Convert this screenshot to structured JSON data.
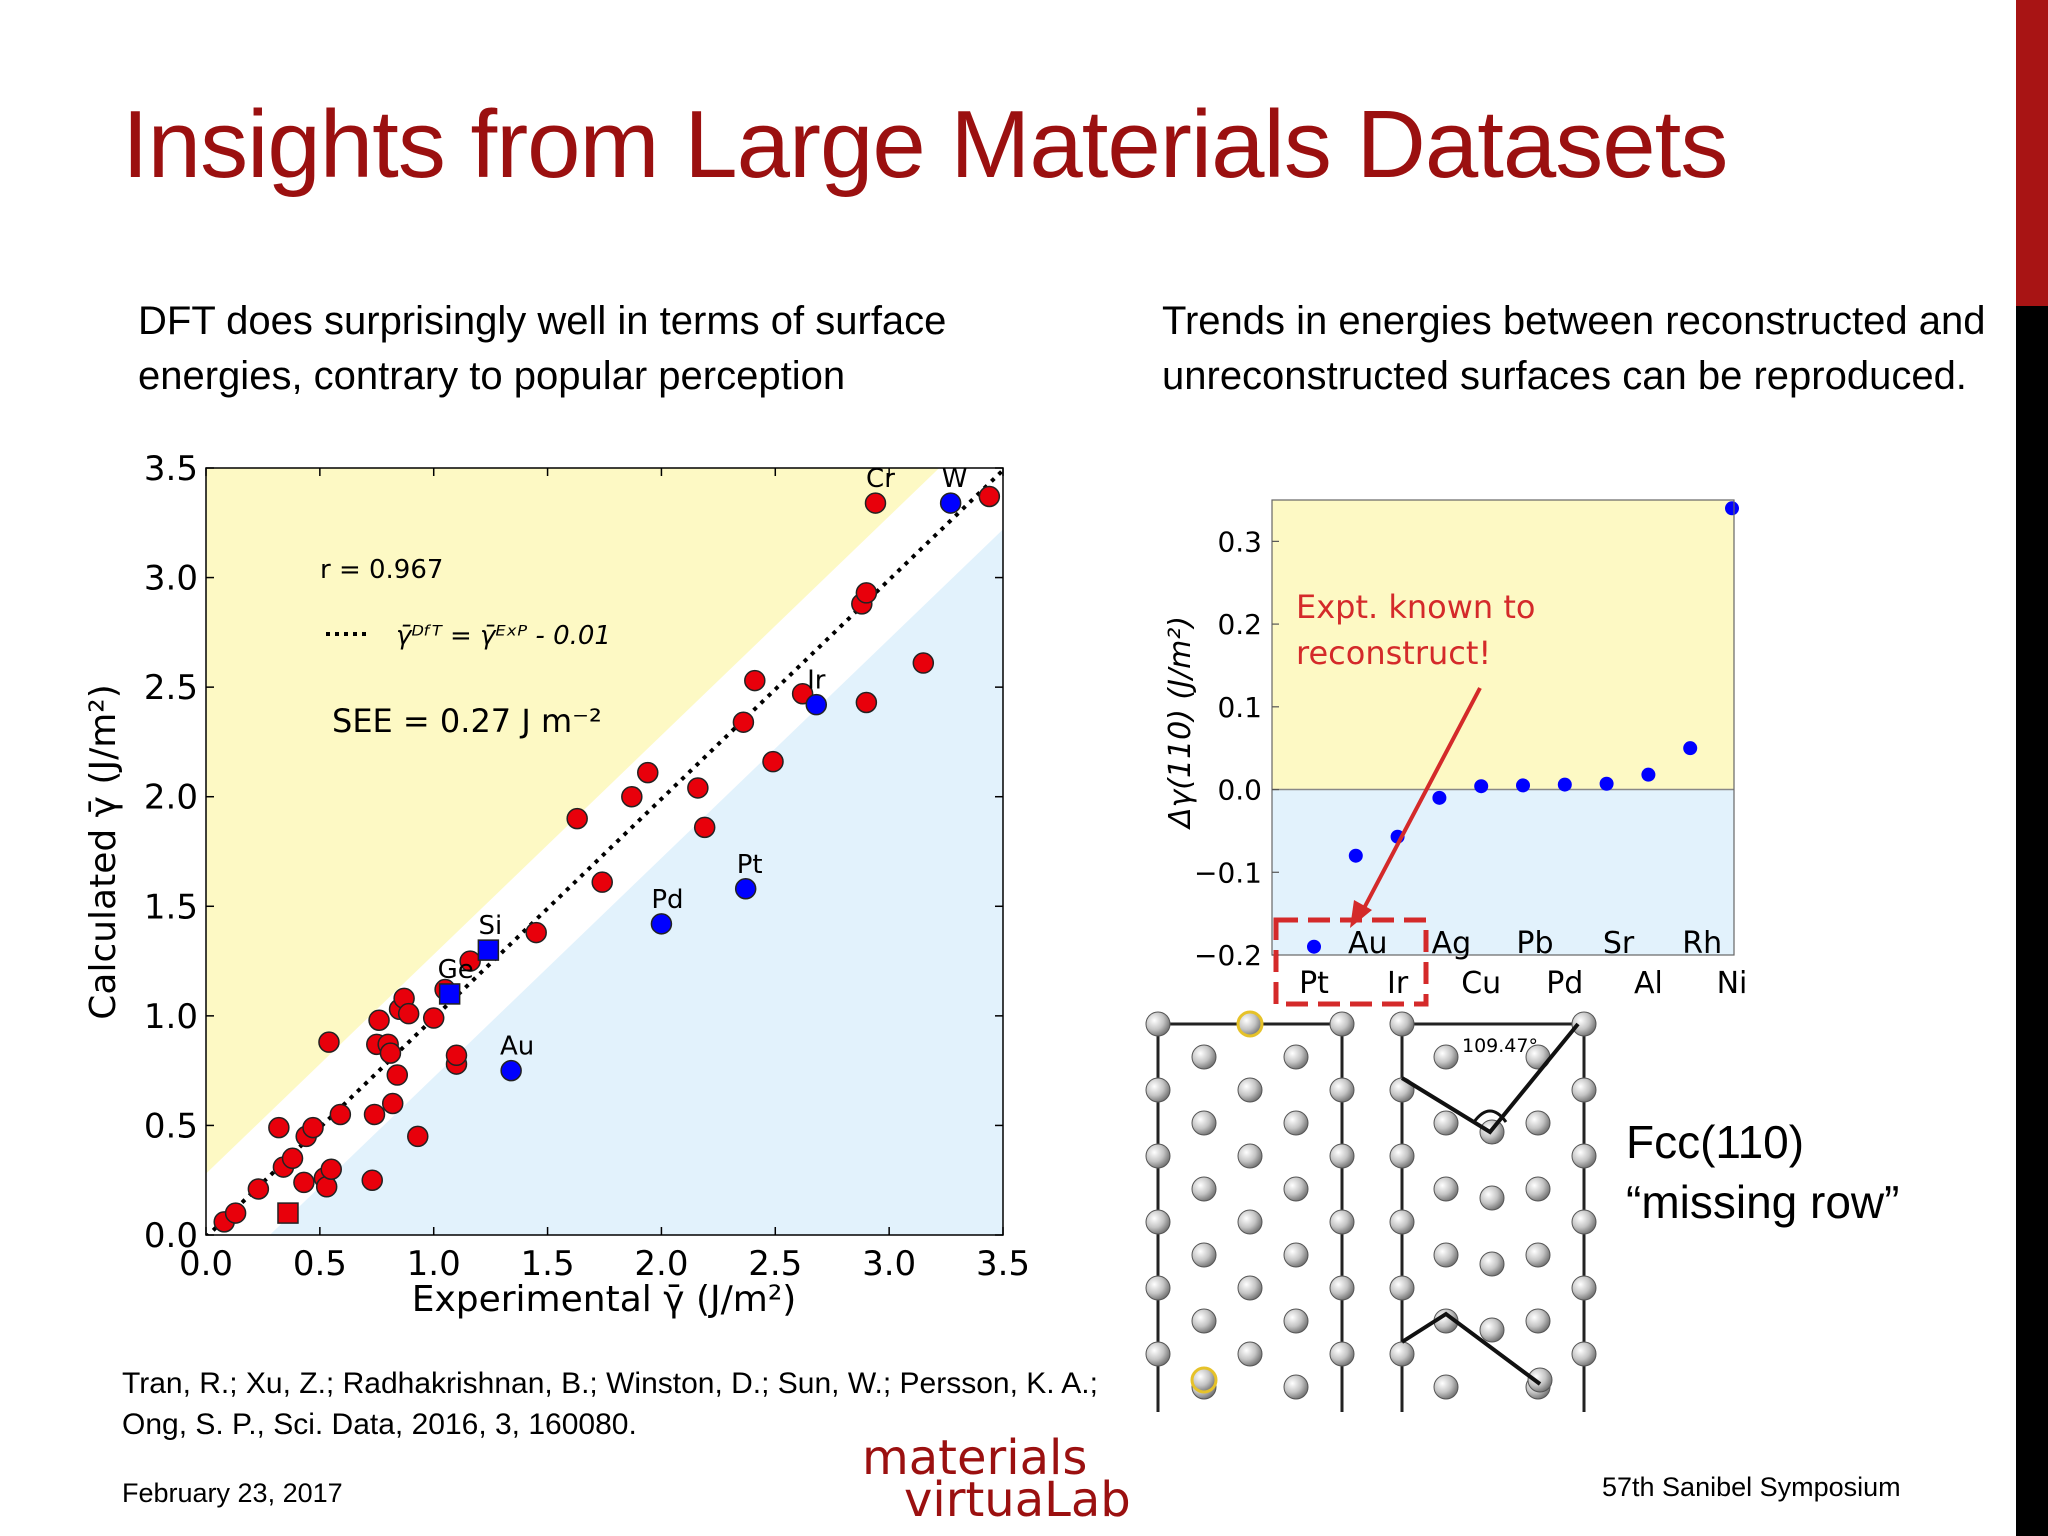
{
  "slide": {
    "title": "Insights from Large Materials Datasets",
    "left_text": "DFT does surprisingly well in terms of surface energies, contrary to popular perception",
    "right_text": "Trends in energies between reconstructed and unreconstructed surfaces can be reproduced.",
    "citation_line1": "Tran, R.; Xu, Z.; Radhakrishnan, B.; Winston, D.; Sun, W.; Persson, K. A.;",
    "citation_line2": "Ong, S. P., Sci. Data, 2016, 3, 160080.",
    "date": "February 23, 2017",
    "footer_right": "57th Sanibel Symposium",
    "logo_line1": "materials",
    "logo_line2": "virtuaLab",
    "fcc_label": "Fcc(110)",
    "fcc_sublabel": "“missing row”",
    "accent_color": "#9b1010"
  },
  "chart_data": [
    {
      "type": "scatter",
      "xlabel": "Experimental γ̄ (J/m²)",
      "ylabel": "Calculated γ̄ (J/m²)",
      "xlim": [
        0,
        3.5
      ],
      "ylim": [
        0,
        3.5
      ],
      "xticks": [
        "0.0",
        "0.5",
        "1.0",
        "1.5",
        "2.0",
        "2.5",
        "3.0",
        "3.5"
      ],
      "yticks": [
        "0.0",
        "0.5",
        "1.0",
        "1.5",
        "2.0",
        "2.5",
        "3.0",
        "3.5"
      ],
      "annotations": {
        "r_text": "r = 0.967",
        "fit_legend": "γ̄ᴰᶠᵀ = γ̄ᴱˣᴾ - 0.01",
        "see_text": "SEE = 0.27 J m⁻²"
      },
      "fit_line": {
        "slope": 1,
        "intercept": -0.01
      },
      "series": [
        {
          "color": "#e8000b",
          "marker": "circle",
          "points": [
            [
              0.08,
              0.06
            ],
            [
              0.13,
              0.1
            ],
            [
              0.23,
              0.21
            ],
            [
              0.32,
              0.49
            ],
            [
              0.34,
              0.31
            ],
            [
              0.38,
              0.35
            ],
            [
              0.43,
              0.24
            ],
            [
              0.44,
              0.45
            ],
            [
              0.47,
              0.49
            ],
            [
              0.52,
              0.26
            ],
            [
              0.53,
              0.22
            ],
            [
              0.54,
              0.88
            ],
            [
              0.55,
              0.3
            ],
            [
              0.59,
              0.55
            ],
            [
              0.73,
              0.25
            ],
            [
              0.74,
              0.55
            ],
            [
              0.75,
              0.87
            ],
            [
              0.76,
              0.98
            ],
            [
              0.8,
              0.87
            ],
            [
              0.81,
              0.83
            ],
            [
              0.82,
              0.6
            ],
            [
              0.84,
              0.73
            ],
            [
              0.85,
              1.03
            ],
            [
              0.87,
              1.08
            ],
            [
              0.89,
              1.01
            ],
            [
              0.93,
              0.45
            ],
            [
              1.0,
              0.99
            ],
            [
              1.05,
              1.12
            ],
            [
              1.1,
              0.78
            ],
            [
              1.1,
              0.82
            ],
            [
              1.16,
              1.25
            ],
            [
              1.45,
              1.38
            ],
            [
              1.63,
              1.9
            ],
            [
              1.74,
              1.61
            ],
            [
              1.87,
              2.0
            ],
            [
              1.94,
              2.11
            ],
            [
              2.16,
              2.04
            ],
            [
              2.19,
              1.86
            ],
            [
              2.36,
              2.34
            ],
            [
              2.41,
              2.53
            ],
            [
              2.49,
              2.16
            ],
            [
              2.62,
              2.47
            ],
            [
              2.88,
              2.88
            ],
            [
              2.9,
              2.93
            ],
            [
              2.9,
              2.43
            ],
            [
              2.94,
              3.34
            ],
            [
              3.15,
              2.61
            ],
            [
              3.44,
              3.37
            ]
          ]
        },
        {
          "color": "#0000ff",
          "marker": "circle",
          "points": [
            [
              1.34,
              0.75
            ],
            [
              2.0,
              1.42
            ],
            [
              2.37,
              1.58
            ],
            [
              2.68,
              2.42
            ],
            [
              3.27,
              3.34
            ]
          ]
        },
        {
          "color": "#0000ff",
          "marker": "square",
          "points": [
            [
              1.07,
              1.1
            ],
            [
              1.24,
              1.3
            ]
          ]
        },
        {
          "color": "#e8000b",
          "marker": "square",
          "points": [
            [
              0.36,
              0.1
            ]
          ]
        }
      ],
      "point_labels": [
        {
          "text": "Cr",
          "x": 2.94,
          "y": 3.34
        },
        {
          "text": "W",
          "x": 3.27,
          "y": 3.34
        },
        {
          "text": "Ir",
          "x": 2.68,
          "y": 2.42
        },
        {
          "text": "Pt",
          "x": 2.37,
          "y": 1.58
        },
        {
          "text": "Pd",
          "x": 2.0,
          "y": 1.42
        },
        {
          "text": "Si",
          "x": 1.24,
          "y": 1.3
        },
        {
          "text": "Ge",
          "x": 1.07,
          "y": 1.1
        },
        {
          "text": "Au",
          "x": 1.34,
          "y": 0.75
        }
      ]
    },
    {
      "type": "scatter",
      "ylabel": "Δγ(110) (J/m²)",
      "ylim": [
        -0.2,
        0.35
      ],
      "yticks": [
        "−0.2",
        "−0.1",
        "0.0",
        "0.1",
        "0.2",
        "0.3"
      ],
      "categories_upper": [
        "Au",
        "Ag",
        "Pb",
        "Sr",
        "Rh"
      ],
      "categories_lower": [
        "Pt",
        "Ir",
        "Cu",
        "Pd",
        "Al",
        "Ni"
      ],
      "series": [
        {
          "color": "#0000ff",
          "points": [
            [
              "Pt",
              -0.19
            ],
            [
              "Au",
              -0.08
            ],
            [
              "Ir",
              -0.057
            ],
            [
              "Ag",
              -0.01
            ],
            [
              "Cu",
              0.004
            ],
            [
              "Pb",
              0.005
            ],
            [
              "Pd",
              0.006
            ],
            [
              "Sr",
              0.007
            ],
            [
              "Al",
              0.018
            ],
            [
              "Rh",
              0.05
            ],
            [
              "Ni",
              0.34
            ]
          ]
        }
      ],
      "annotation": "Expt. known to reconstruct!",
      "annotation_line1": "Expt. known to",
      "annotation_line2": "reconstruct!",
      "region_colors": {
        "positive": "#fdf9c4",
        "negative": "#e2f2fc"
      }
    }
  ],
  "diagram": {
    "angle_label": "109.47°"
  }
}
